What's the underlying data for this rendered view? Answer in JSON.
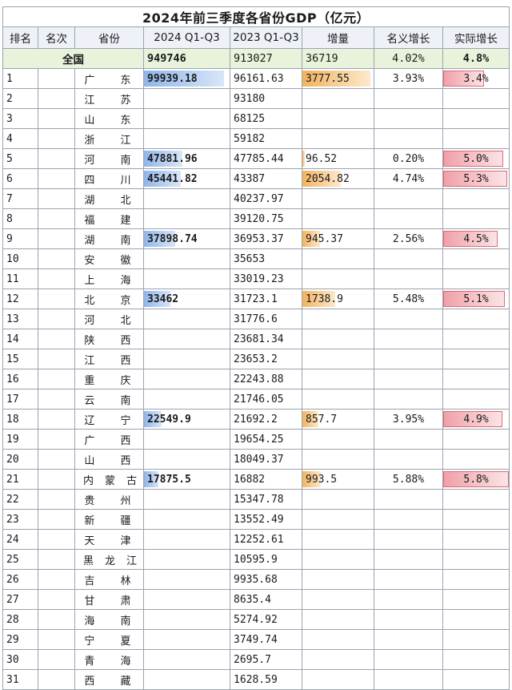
{
  "title": "2024年前三季度各省份GDP（亿元）",
  "headers": [
    "排名",
    "名次",
    "省份",
    "2024 Q1-Q3",
    "2023 Q1-Q3",
    "增量",
    "名义增长",
    "实际增长"
  ],
  "total": {
    "label": "全国",
    "v2024": "949746",
    "v2023": "913027",
    "inc": "36719",
    "nominal": "4.02%",
    "real": "4.8%"
  },
  "rows": [
    {
      "rank": "1",
      "name": "广 东",
      "v2024": "99939.18",
      "v2023": "96161.63",
      "inc": "3777.55",
      "nominal": "3.93%",
      "real": "3.4%",
      "f2024": 0.93,
      "finc": 0.95,
      "freal": 0.62
    },
    {
      "rank": "2",
      "name": "江 苏",
      "v2024": "",
      "v2023": "93180",
      "inc": "",
      "nominal": "",
      "real": "",
      "f2024": 0,
      "finc": 0,
      "freal": 0
    },
    {
      "rank": "3",
      "name": "山 东",
      "v2024": "",
      "v2023": "68125",
      "inc": "",
      "nominal": "",
      "real": "",
      "f2024": 0,
      "finc": 0,
      "freal": 0
    },
    {
      "rank": "4",
      "name": "浙 江",
      "v2024": "",
      "v2023": "59182",
      "inc": "",
      "nominal": "",
      "real": "",
      "f2024": 0,
      "finc": 0,
      "freal": 0
    },
    {
      "rank": "5",
      "name": "河 南",
      "v2024": "47881.96",
      "v2023": "47785.44",
      "inc": "96.52",
      "nominal": "0.20%",
      "real": "5.0%",
      "f2024": 0.45,
      "finc": 0.03,
      "freal": 0.92
    },
    {
      "rank": "6",
      "name": "四 川",
      "v2024": "45441.82",
      "v2023": "43387",
      "inc": "2054.82",
      "nominal": "4.74%",
      "real": "5.3%",
      "f2024": 0.43,
      "finc": 0.54,
      "freal": 0.97
    },
    {
      "rank": "7",
      "name": "湖 北",
      "v2024": "",
      "v2023": "40237.97",
      "inc": "",
      "nominal": "",
      "real": "",
      "f2024": 0,
      "finc": 0,
      "freal": 0
    },
    {
      "rank": "8",
      "name": "福 建",
      "v2024": "",
      "v2023": "39120.75",
      "inc": "",
      "nominal": "",
      "real": "",
      "f2024": 0,
      "finc": 0,
      "freal": 0
    },
    {
      "rank": "9",
      "name": "湖 南",
      "v2024": "37898.74",
      "v2023": "36953.37",
      "inc": "945.37",
      "nominal": "2.56%",
      "real": "4.5%",
      "f2024": 0.36,
      "finc": 0.25,
      "freal": 0.83
    },
    {
      "rank": "10",
      "name": "安 徽",
      "v2024": "",
      "v2023": "35653",
      "inc": "",
      "nominal": "",
      "real": "",
      "f2024": 0,
      "finc": 0,
      "freal": 0
    },
    {
      "rank": "11",
      "name": "上 海",
      "v2024": "",
      "v2023": "33019.23",
      "inc": "",
      "nominal": "",
      "real": "",
      "f2024": 0,
      "finc": 0,
      "freal": 0
    },
    {
      "rank": "12",
      "name": "北 京",
      "v2024": "33462",
      "v2023": "31723.1",
      "inc": "1738.9",
      "nominal": "5.48%",
      "real": "5.1%",
      "f2024": 0.31,
      "finc": 0.46,
      "freal": 0.94
    },
    {
      "rank": "13",
      "name": "河 北",
      "v2024": "",
      "v2023": "31776.6",
      "inc": "",
      "nominal": "",
      "real": "",
      "f2024": 0,
      "finc": 0,
      "freal": 0
    },
    {
      "rank": "14",
      "name": "陕 西",
      "v2024": "",
      "v2023": "23681.34",
      "inc": "",
      "nominal": "",
      "real": "",
      "f2024": 0,
      "finc": 0,
      "freal": 0
    },
    {
      "rank": "15",
      "name": "江 西",
      "v2024": "",
      "v2023": "23653.2",
      "inc": "",
      "nominal": "",
      "real": "",
      "f2024": 0,
      "finc": 0,
      "freal": 0
    },
    {
      "rank": "16",
      "name": "重 庆",
      "v2024": "",
      "v2023": "22243.88",
      "inc": "",
      "nominal": "",
      "real": "",
      "f2024": 0,
      "finc": 0,
      "freal": 0
    },
    {
      "rank": "17",
      "name": "云 南",
      "v2024": "",
      "v2023": "21746.05",
      "inc": "",
      "nominal": "",
      "real": "",
      "f2024": 0,
      "finc": 0,
      "freal": 0
    },
    {
      "rank": "18",
      "name": "辽 宁",
      "v2024": "22549.9",
      "v2023": "21692.2",
      "inc": "857.7",
      "nominal": "3.95%",
      "real": "4.9%",
      "f2024": 0.21,
      "finc": 0.23,
      "freal": 0.9
    },
    {
      "rank": "19",
      "name": "广 西",
      "v2024": "",
      "v2023": "19654.25",
      "inc": "",
      "nominal": "",
      "real": "",
      "f2024": 0,
      "finc": 0,
      "freal": 0
    },
    {
      "rank": "20",
      "name": "山 西",
      "v2024": "",
      "v2023": "18049.37",
      "inc": "",
      "nominal": "",
      "real": "",
      "f2024": 0,
      "finc": 0,
      "freal": 0
    },
    {
      "rank": "21",
      "name": "内蒙古",
      "v2024": "17875.5",
      "v2023": "16882",
      "inc": "993.5",
      "nominal": "5.88%",
      "real": "5.8%",
      "f2024": 0.17,
      "finc": 0.26,
      "freal": 1.0
    },
    {
      "rank": "22",
      "name": "贵 州",
      "v2024": "",
      "v2023": "15347.78",
      "inc": "",
      "nominal": "",
      "real": "",
      "f2024": 0,
      "finc": 0,
      "freal": 0
    },
    {
      "rank": "23",
      "name": "新 疆",
      "v2024": "",
      "v2023": "13552.49",
      "inc": "",
      "nominal": "",
      "real": "",
      "f2024": 0,
      "finc": 0,
      "freal": 0
    },
    {
      "rank": "24",
      "name": "天 津",
      "v2024": "",
      "v2023": "12252.61",
      "inc": "",
      "nominal": "",
      "real": "",
      "f2024": 0,
      "finc": 0,
      "freal": 0
    },
    {
      "rank": "25",
      "name": "黑龙江",
      "v2024": "",
      "v2023": "10595.9",
      "inc": "",
      "nominal": "",
      "real": "",
      "f2024": 0,
      "finc": 0,
      "freal": 0
    },
    {
      "rank": "26",
      "name": "吉 林",
      "v2024": "",
      "v2023": "9935.68",
      "inc": "",
      "nominal": "",
      "real": "",
      "f2024": 0,
      "finc": 0,
      "freal": 0
    },
    {
      "rank": "27",
      "name": "甘 肃",
      "v2024": "",
      "v2023": "8635.4",
      "inc": "",
      "nominal": "",
      "real": "",
      "f2024": 0,
      "finc": 0,
      "freal": 0
    },
    {
      "rank": "28",
      "name": "海 南",
      "v2024": "",
      "v2023": "5274.92",
      "inc": "",
      "nominal": "",
      "real": "",
      "f2024": 0,
      "finc": 0,
      "freal": 0
    },
    {
      "rank": "29",
      "name": "宁 夏",
      "v2024": "",
      "v2023": "3749.74",
      "inc": "",
      "nominal": "",
      "real": "",
      "f2024": 0,
      "finc": 0,
      "freal": 0
    },
    {
      "rank": "30",
      "name": "青 海",
      "v2024": "",
      "v2023": "2695.7",
      "inc": "",
      "nominal": "",
      "real": "",
      "f2024": 0,
      "finc": 0,
      "freal": 0
    },
    {
      "rank": "31",
      "name": "西 藏",
      "v2024": "",
      "v2023": "1628.59",
      "inc": "",
      "nominal": "",
      "real": "",
      "f2024": 0,
      "finc": 0,
      "freal": 0
    }
  ],
  "colors": {
    "blue_bar": "#8fb5e8",
    "orange_bar": "#f2b35f",
    "red_bar": "#f0a0a8",
    "total_row": "#e9f3db"
  }
}
